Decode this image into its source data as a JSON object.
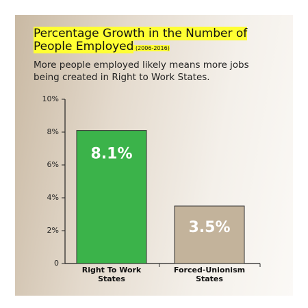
{
  "chart_data": {
    "type": "bar",
    "title": "Percentage Growth in the Number of People Employed",
    "title_note": "(2006-2016)",
    "subtitle": "More people employed likely means more jobs being created in Right to Work States.",
    "categories": [
      "Right To Work States",
      "Forced-Unionism States"
    ],
    "values": [
      8.1,
      3.5
    ],
    "value_labels": [
      "8.1%",
      "3.5%"
    ],
    "colors": [
      "#3bb34a",
      "#c3b39b"
    ],
    "ylim": [
      0,
      10
    ],
    "yticks": [
      0,
      {
        "value": 2,
        "label": "2%"
      },
      {
        "value": 4,
        "label": "4%"
      },
      {
        "value": 6,
        "label": "6%"
      },
      {
        "value": 8,
        "label": "8%"
      },
      {
        "value": 10,
        "label": "10%"
      }
    ],
    "grid": false
  }
}
